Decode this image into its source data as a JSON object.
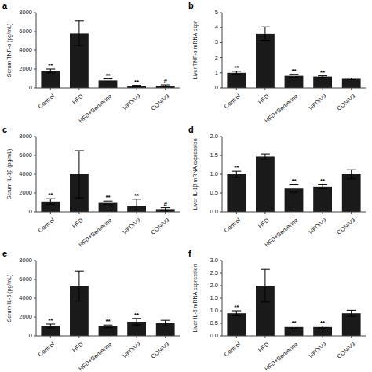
{
  "chart_data": [
    {
      "type": "bar",
      "title": "a",
      "ylabel": "Serum TNF-α (pg/mL)",
      "categories": [
        "Control",
        "HFD",
        "HFD+Berberine",
        "HFD/V9",
        "CON/V9"
      ],
      "values": [
        1800,
        5800,
        800,
        200,
        250
      ],
      "errors": [
        200,
        1300,
        150,
        80,
        80
      ],
      "annotations": [
        "**",
        null,
        "**",
        "**",
        "#"
      ],
      "color": "#1a1a1a",
      "ylim": [
        0,
        8000
      ],
      "yticks": [
        0,
        2000,
        4000,
        6000,
        8000
      ],
      "grid": false
    },
    {
      "type": "bar",
      "title": "b",
      "ylabel": "Liver TNF-α mRNA expr",
      "categories": [
        "Control",
        "HFD",
        "HFD+Berberine",
        "HFD/V9",
        "CON/V9"
      ],
      "values": [
        1.0,
        3.6,
        0.8,
        0.75,
        0.6
      ],
      "errors": [
        0.1,
        0.45,
        0.1,
        0.05,
        0.05
      ],
      "annotations": [
        "**",
        null,
        "**",
        "**",
        null
      ],
      "color": "#1a1a1a",
      "ylim": [
        0,
        5
      ],
      "yticks": [
        0,
        1,
        2,
        3,
        4,
        5
      ],
      "grid": false
    },
    {
      "type": "bar",
      "title": "c",
      "ylabel": "Serum IL-1β (pg/mL)",
      "categories": [
        "Control",
        "HFD",
        "HFD+Berberine",
        "HFD/V9",
        "CON/V9"
      ],
      "values": [
        1100,
        4000,
        950,
        650,
        300
      ],
      "errors": [
        300,
        2500,
        200,
        700,
        150
      ],
      "annotations": [
        "**",
        null,
        "**",
        "**",
        "#"
      ],
      "color": "#1a1a1a",
      "ylim": [
        0,
        8000
      ],
      "yticks": [
        0,
        2000,
        4000,
        6000,
        8000
      ],
      "grid": false
    },
    {
      "type": "bar",
      "title": "d",
      "ylabel": "Liver IL-1β mRNA expression",
      "categories": [
        "Control",
        "HFD",
        "HFD+Berberine",
        "HFD/V9",
        "CON/V9"
      ],
      "values": [
        1.0,
        1.47,
        0.62,
        0.67,
        1.0
      ],
      "errors": [
        0.08,
        0.07,
        0.1,
        0.05,
        0.12
      ],
      "annotations": [
        "**",
        null,
        "**",
        "**",
        null
      ],
      "color": "#1a1a1a",
      "ylim": [
        0,
        2.0
      ],
      "yticks": [
        {
          "value": 0,
          "label": "0.0"
        },
        {
          "value": 0.5,
          "label": "0.5"
        },
        {
          "value": 1,
          "label": "1.0"
        },
        {
          "value": 1.5,
          "label": "1.5"
        },
        {
          "value": 2,
          "label": "2.0"
        }
      ],
      "grid": false
    },
    {
      "type": "bar",
      "title": "e",
      "ylabel": "Serum IL-6 (pg/mL)",
      "categories": [
        "Control",
        "HFD",
        "HFD+Berberine",
        "HFD/V9",
        "CON/V9"
      ],
      "values": [
        1050,
        5300,
        1000,
        1500,
        1350
      ],
      "errors": [
        200,
        1600,
        150,
        350,
        300
      ],
      "annotations": [
        "**",
        null,
        "**",
        "**",
        null
      ],
      "color": "#1a1a1a",
      "ylim": [
        0,
        8000
      ],
      "yticks": [
        0,
        2000,
        4000,
        6000,
        8000
      ],
      "grid": false
    },
    {
      "type": "bar",
      "title": "f",
      "ylabel": "Liver IL-6 mRNA expression",
      "categories": [
        "Control",
        "HFD",
        "HFD+Berberine",
        "HFD/V9",
        "CON/V9"
      ],
      "values": [
        0.9,
        2.0,
        0.35,
        0.35,
        0.9
      ],
      "errors": [
        0.1,
        0.65,
        0.04,
        0.04,
        0.12
      ],
      "annotations": [
        "**",
        null,
        "**",
        "**",
        null
      ],
      "color": "#1a1a1a",
      "ylim": [
        0,
        3.0
      ],
      "yticks": [
        {
          "value": 0,
          "label": "0.0"
        },
        {
          "value": 0.5,
          "label": "0.5"
        },
        {
          "value": 1,
          "label": "1.0"
        },
        {
          "value": 1.5,
          "label": "1.5"
        },
        {
          "value": 2,
          "label": "2.0"
        },
        {
          "value": 2.5,
          "label": "2.5"
        },
        {
          "value": 3,
          "label": "3.0"
        }
      ],
      "grid": false
    }
  ]
}
